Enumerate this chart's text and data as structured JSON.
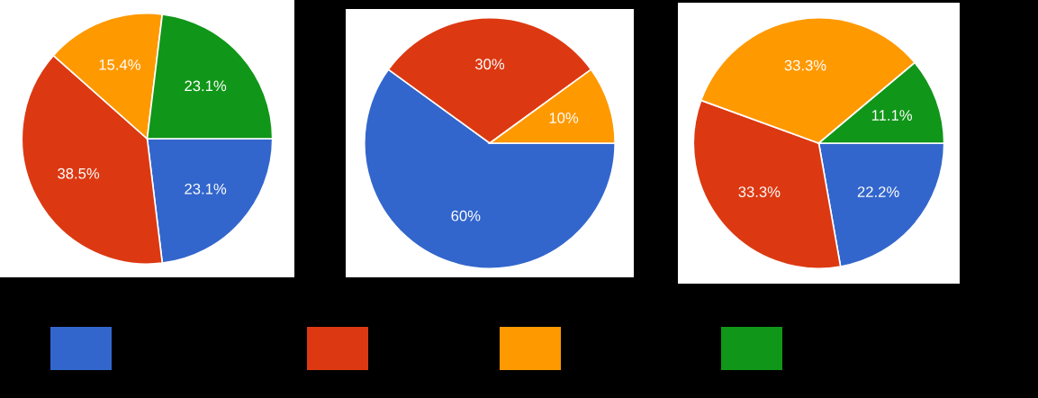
{
  "chart_data": [
    {
      "type": "pie",
      "categories": [
        null,
        null,
        null,
        null
      ],
      "values": [
        23.1,
        38.5,
        15.4,
        23.1
      ],
      "colors": [
        "#3366cc",
        "#dc3912",
        "#ff9900",
        "#109618"
      ],
      "value_labels": [
        "23.1%",
        "38.5%",
        "15.4%",
        "23.1%"
      ]
    },
    {
      "type": "pie",
      "categories": [
        null,
        null,
        null
      ],
      "values": [
        60,
        30,
        10
      ],
      "colors": [
        "#3366cc",
        "#dc3912",
        "#ff9900"
      ],
      "value_labels": [
        "60%",
        "30%",
        "10%"
      ]
    },
    {
      "type": "pie",
      "categories": [
        null,
        null,
        null,
        null
      ],
      "values": [
        22.2,
        33.3,
        33.3,
        11.1
      ],
      "colors": [
        "#3366cc",
        "#dc3912",
        "#ff9900",
        "#109618"
      ],
      "value_labels": [
        "22.2%",
        "33.3%",
        "33.3%",
        "11.1%"
      ]
    }
  ]
}
